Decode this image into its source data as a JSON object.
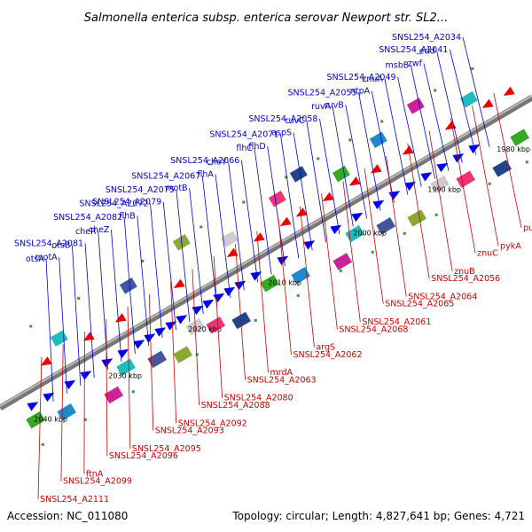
{
  "title": "Salmonella enterica subsp. enterica serovar Newport str. SL2...",
  "accession": "Accession: NC_011080",
  "summary": "Topology: circular; Length: 4,827,641 bp; Genes: 4,721",
  "colors": {
    "forward_label": "#0000cc",
    "reverse_label": "#cc0000",
    "backbone": "#777777",
    "forward_arrow": "#0000ee",
    "reverse_arrow": "#ee0000"
  },
  "ticks": [
    "1980 kbp",
    "1990 kbp",
    "2000 kbp",
    "2010 kbp",
    "2020 kbp",
    "2030 kbp",
    "2040 kbp"
  ],
  "forward_labels": [
    "SNSL254_A2034",
    "SNSL254_A2041",
    "edd",
    "zwf",
    "msbB",
    "SNSL254_A2049",
    "znuA",
    "ntpA",
    "SNSL254_A2055",
    "ruvB",
    "ruvA",
    "SNSL254_A2058",
    "ruvC",
    "aspS",
    "SNSL254_A2071",
    "flhD",
    "flhC",
    "SNSL254_A2066",
    "cheY",
    "flhA",
    "SNSL254_A2067",
    "motB",
    "SNSL254_A2075",
    "SNSL254_A2079",
    "SNSL254_A2072",
    "flhB",
    "SNSL254_A2082",
    "cheZ",
    "cheR",
    "SNSL254_A2081",
    "otsB",
    "motA",
    "otsA"
  ],
  "reverse_labels": [
    "purT",
    "pykA",
    "znuC",
    "znuB",
    "SNSL254_A2056",
    "SNSL254_A2064",
    "SNSL254_A2065",
    "SNSL254_A2061",
    "SNSL254_A2068",
    "argS",
    "SNSL254_A2062",
    "mrdA",
    "SNSL254_A2063",
    "SNSL254_A2080",
    "SNSL254_A2088",
    "SNSL254_A2092",
    "SNSL254_A2093",
    "SNSL254_A2095",
    "SNSL254_A2096",
    "ftnA",
    "SNSL254_A2099",
    "SNSL254_A2111"
  ]
}
